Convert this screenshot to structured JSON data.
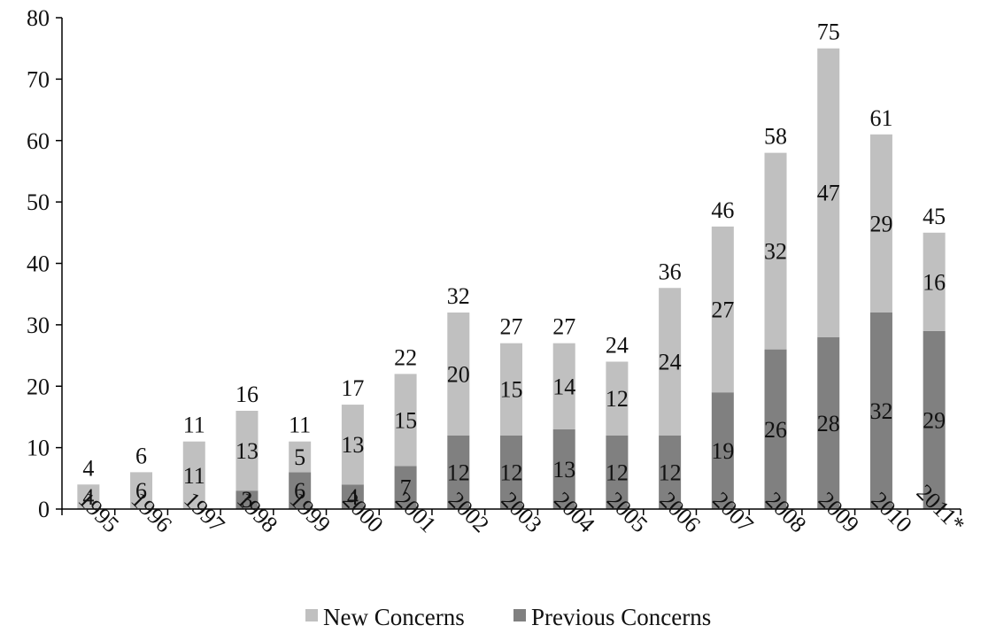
{
  "chart_data": {
    "type": "bar",
    "stacked": true,
    "categories": [
      "1995",
      "1996",
      "1997",
      "1998",
      "1999",
      "2000",
      "2001",
      "2002",
      "2003",
      "2004",
      "2005",
      "2006",
      "2007",
      "2008",
      "2009",
      "2010",
      "2011*"
    ],
    "series": [
      {
        "name": "Previous Concerns",
        "color": "#808080",
        "values": [
          0,
          0,
          0,
          3,
          6,
          4,
          7,
          12,
          12,
          13,
          12,
          12,
          19,
          26,
          28,
          32,
          29
        ],
        "labels": [
          "",
          "",
          "",
          "3",
          "6",
          "4",
          "7",
          "12",
          "12",
          "13",
          "12",
          "12",
          "19",
          "26",
          "28",
          "32",
          "29"
        ]
      },
      {
        "name": "New Concerns",
        "color": "#c0c0c0",
        "values": [
          4,
          6,
          11,
          13,
          5,
          13,
          15,
          20,
          15,
          14,
          12,
          24,
          27,
          32,
          47,
          29,
          16
        ],
        "labels": [
          "4",
          "6",
          "11",
          "13",
          "5",
          "13",
          "15",
          "20",
          "15",
          "14",
          "12",
          "24",
          "27",
          "32",
          "47",
          "29",
          "16"
        ]
      }
    ],
    "totals": [
      "4",
      "6",
      "11",
      "16",
      "11",
      "17",
      "22",
      "32",
      "27",
      "27",
      "24",
      "36",
      "46",
      "58",
      "75",
      "61",
      "45"
    ],
    "ylim": [
      0,
      80
    ],
    "yticks": [
      "0",
      "10",
      "20",
      "30",
      "40",
      "50",
      "60",
      "70",
      "80"
    ],
    "xlabel": "",
    "ylabel": "",
    "title": "",
    "grid": false,
    "legend": {
      "position": "bottom",
      "entries": [
        "New Concerns",
        "Previous Concerns"
      ]
    }
  }
}
